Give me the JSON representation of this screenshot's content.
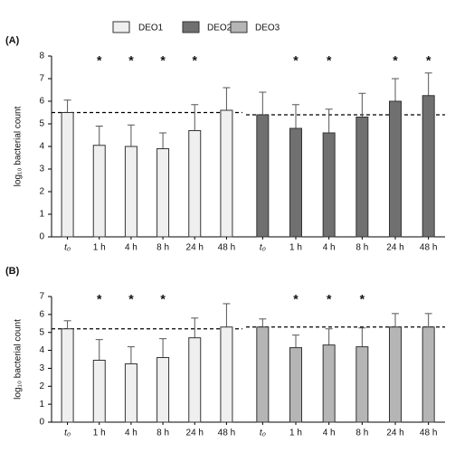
{
  "chart_data": [
    {
      "type": "bar",
      "panel_label": "(A)",
      "y_label": "log₁₀ bacterial count",
      "categories": [
        "t₀",
        "1 h",
        "4 h",
        "8 h",
        "24 h",
        "48 h"
      ],
      "ylim": [
        0,
        8
      ],
      "yticks": [
        0,
        1,
        2,
        3,
        4,
        5,
        6,
        7,
        8
      ],
      "series": [
        {
          "name": "DEO1",
          "color": "#efefef",
          "values": [
            5.5,
            4.05,
            4.0,
            3.9,
            4.7,
            5.6
          ],
          "errors": [
            0.55,
            0.85,
            0.95,
            0.7,
            1.15,
            1.0
          ],
          "significance": [
            null,
            "*",
            "*",
            "*",
            "*",
            null
          ],
          "reference_line": 5.5
        },
        {
          "name": "DEO2",
          "color": "#707070",
          "values": [
            5.4,
            4.8,
            4.6,
            5.3,
            6.0,
            6.25
          ],
          "errors": [
            1.0,
            1.05,
            1.05,
            1.05,
            1.0,
            1.0
          ],
          "significance": [
            null,
            "*",
            "*",
            null,
            "*",
            "*"
          ],
          "reference_line": 5.4
        }
      ]
    },
    {
      "type": "bar",
      "panel_label": "(B)",
      "y_label": "log₁₀ bacterial count",
      "categories": [
        "t₀",
        "1 h",
        "4 h",
        "8 h",
        "24 h",
        "48 h"
      ],
      "ylim": [
        0,
        7
      ],
      "yticks": [
        0,
        1,
        2,
        3,
        4,
        5,
        6,
        7
      ],
      "series": [
        {
          "name": "DEO1",
          "color": "#efefef",
          "values": [
            5.2,
            3.45,
            3.25,
            3.6,
            4.7,
            5.3
          ],
          "errors": [
            0.45,
            1.15,
            0.95,
            1.05,
            1.1,
            1.3
          ],
          "significance": [
            null,
            "*",
            "*",
            "*",
            null,
            null
          ],
          "reference_line": 5.2
        },
        {
          "name": "DEO3",
          "color": "#b5b5b5",
          "values": [
            5.3,
            4.15,
            4.3,
            4.2,
            5.3,
            5.3
          ],
          "errors": [
            0.45,
            0.7,
            0.9,
            1.05,
            0.75,
            0.75
          ],
          "significance": [
            null,
            "*",
            "*",
            "*",
            null,
            null
          ],
          "reference_line": 5.3
        }
      ]
    }
  ]
}
